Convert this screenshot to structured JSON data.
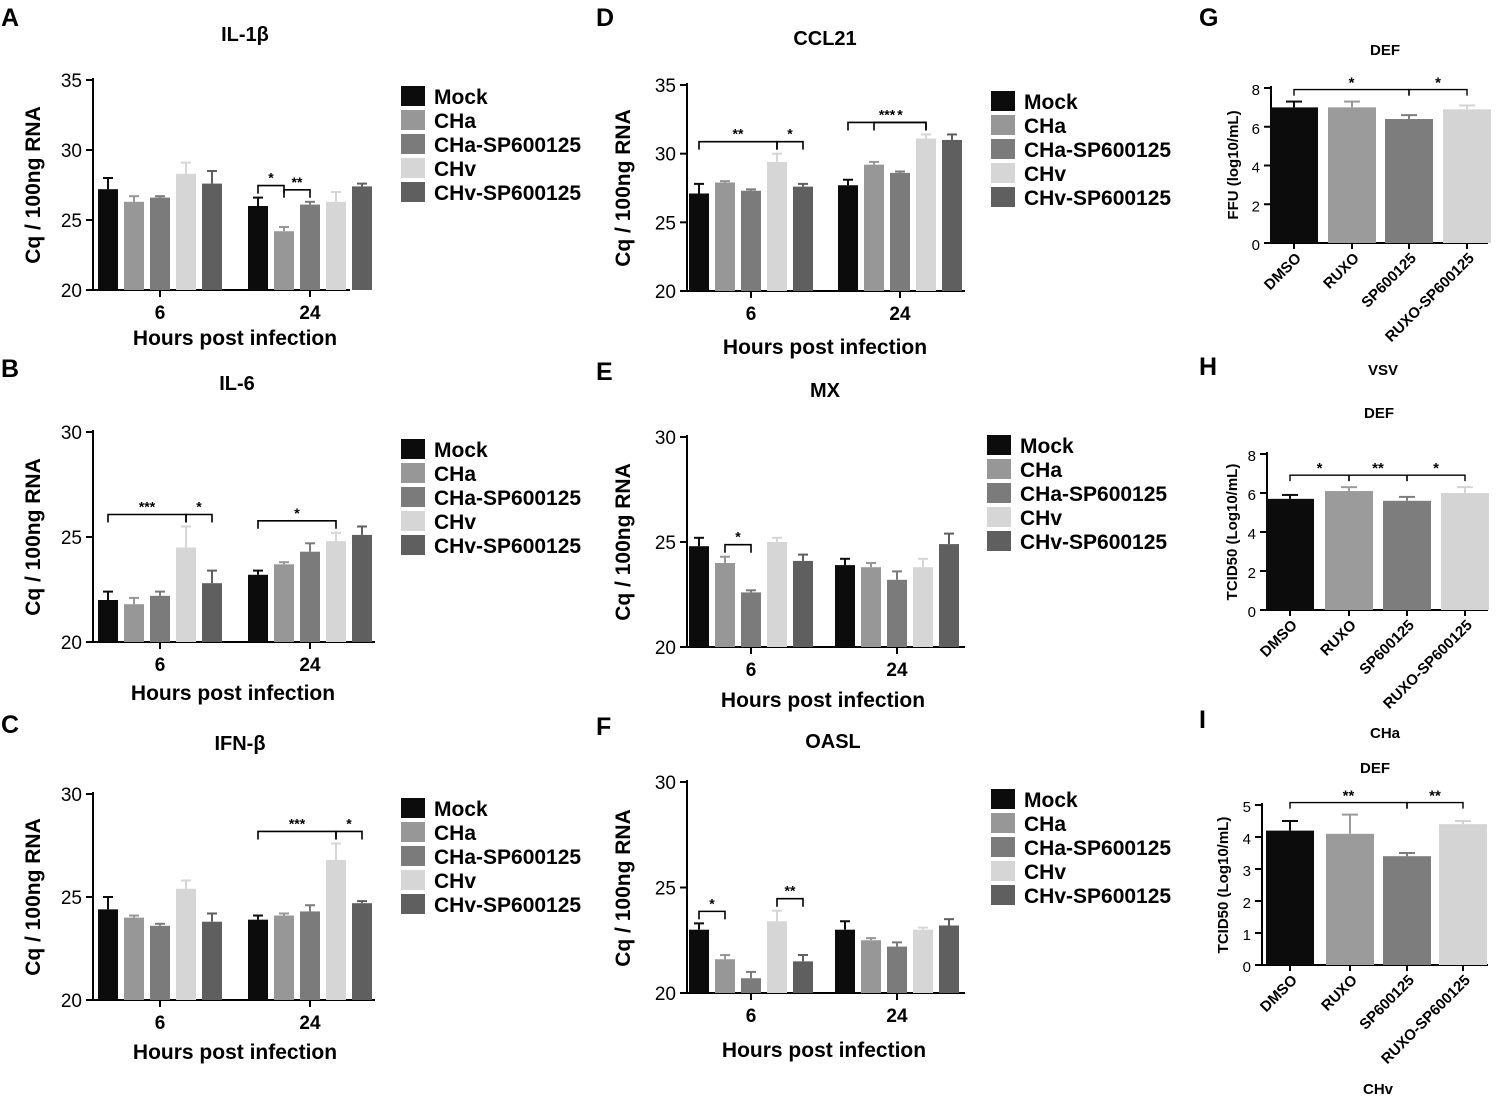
{
  "colors": {
    "mock": "#0c0c0c",
    "cha": "#979797",
    "cha_sp": "#7b7b7b",
    "chv": "#d6d6d6",
    "chv_sp": "#5f5f5f",
    "dmso": "#0c0c0c",
    "ruxo": "#9b9b9b",
    "sp600125": "#7d7d7d",
    "ruxo_sp": "#d4d4d4"
  },
  "panel_letters": [
    "A",
    "B",
    "C",
    "D",
    "E",
    "F",
    "G",
    "H",
    "I"
  ],
  "chart_data": [
    {
      "id": "A",
      "type": "bar",
      "title": "IL-1β",
      "xlabel": "Hours post infection",
      "ylabel": "Cq / 100ng RNA",
      "ylim": [
        20,
        35
      ],
      "yticks": [
        20,
        25,
        30,
        35
      ],
      "categories": [
        "6",
        "24"
      ],
      "series": [
        {
          "name": "Mock",
          "values": [
            27.2,
            26.0
          ],
          "errors": [
            0.8,
            0.6
          ]
        },
        {
          "name": "CHa",
          "values": [
            26.3,
            24.2
          ],
          "errors": [
            0.4,
            0.3
          ]
        },
        {
          "name": "CHa-SP600125",
          "values": [
            26.6,
            26.1
          ],
          "errors": [
            0.1,
            0.2
          ]
        },
        {
          "name": "CHv",
          "values": [
            28.3,
            26.3
          ],
          "errors": [
            0.8,
            0.7
          ]
        },
        {
          "name": "CHv-SP600125",
          "values": [
            27.6,
            27.4
          ],
          "errors": [
            0.9,
            0.2
          ]
        }
      ],
      "annotations": [
        {
          "cat": 1,
          "from": 0,
          "to": 1,
          "label": "*"
        },
        {
          "cat": 1,
          "from": 1,
          "to": 2,
          "label": "**"
        }
      ]
    },
    {
      "id": "B",
      "type": "bar",
      "title": "IL-6",
      "xlabel": "Hours post infection",
      "ylabel": "Cq / 100ng RNA",
      "ylim": [
        20,
        30
      ],
      "yticks": [
        20,
        25,
        30
      ],
      "categories": [
        "6",
        "24"
      ],
      "series": [
        {
          "name": "Mock",
          "values": [
            22.0,
            23.2
          ],
          "errors": [
            0.4,
            0.2
          ]
        },
        {
          "name": "CHa",
          "values": [
            21.8,
            23.7
          ],
          "errors": [
            0.3,
            0.1
          ]
        },
        {
          "name": "CHa-SP600125",
          "values": [
            22.2,
            24.3
          ],
          "errors": [
            0.2,
            0.4
          ]
        },
        {
          "name": "CHv",
          "values": [
            24.5,
            24.8
          ],
          "errors": [
            1.0,
            0.4
          ]
        },
        {
          "name": "CHv-SP600125",
          "values": [
            22.8,
            25.1
          ],
          "errors": [
            0.6,
            0.4
          ]
        }
      ],
      "annotations": [
        {
          "cat": 0,
          "from": 0,
          "to": 3,
          "label": "***"
        },
        {
          "cat": 0,
          "from": 3,
          "to": 4,
          "label": "*"
        },
        {
          "cat": 1,
          "from": 0,
          "to": 3,
          "label": "*"
        }
      ]
    },
    {
      "id": "C",
      "type": "bar",
      "title": "IFN-β",
      "xlabel": "Hours post infection",
      "ylabel": "Cq / 100ng RNA",
      "ylim": [
        20,
        30
      ],
      "yticks": [
        20,
        25,
        30
      ],
      "categories": [
        "6",
        "24"
      ],
      "series": [
        {
          "name": "Mock",
          "values": [
            24.4,
            23.9
          ],
          "errors": [
            0.6,
            0.2
          ]
        },
        {
          "name": "CHa",
          "values": [
            24.0,
            24.1
          ],
          "errors": [
            0.1,
            0.1
          ]
        },
        {
          "name": "CHa-SP600125",
          "values": [
            23.6,
            24.3
          ],
          "errors": [
            0.1,
            0.3
          ]
        },
        {
          "name": "CHv",
          "values": [
            25.4,
            26.8
          ],
          "errors": [
            0.4,
            0.8
          ]
        },
        {
          "name": "CHv-SP600125",
          "values": [
            23.8,
            24.7
          ],
          "errors": [
            0.4,
            0.1
          ]
        }
      ],
      "annotations": [
        {
          "cat": 1,
          "from": 0,
          "to": 3,
          "label": "***"
        },
        {
          "cat": 1,
          "from": 3,
          "to": 4,
          "label": "*"
        }
      ]
    },
    {
      "id": "D",
      "type": "bar",
      "title": "CCL21",
      "xlabel": "Hours post infection",
      "ylabel": "Cq / 100ng RNA",
      "ylim": [
        20,
        35
      ],
      "yticks": [
        20,
        25,
        30,
        35
      ],
      "categories": [
        "6",
        "24"
      ],
      "series": [
        {
          "name": "Mock",
          "values": [
            27.1,
            27.7
          ],
          "errors": [
            0.7,
            0.4
          ]
        },
        {
          "name": "CHa",
          "values": [
            27.9,
            29.2
          ],
          "errors": [
            0.1,
            0.2
          ]
        },
        {
          "name": "CHa-SP600125",
          "values": [
            27.3,
            28.6
          ],
          "errors": [
            0.1,
            0.1
          ]
        },
        {
          "name": "CHv",
          "values": [
            29.4,
            31.1
          ],
          "errors": [
            0.6,
            0.3
          ]
        },
        {
          "name": "CHv-SP600125",
          "values": [
            27.6,
            31.0
          ],
          "errors": [
            0.2,
            0.4
          ]
        }
      ],
      "annotations": [
        {
          "cat": 0,
          "from": 0,
          "to": 3,
          "label": "**"
        },
        {
          "cat": 0,
          "from": 3,
          "to": 4,
          "label": "*"
        },
        {
          "cat": 1,
          "from": 0,
          "to": 3,
          "label": "***"
        },
        {
          "cat": 1,
          "from": 1,
          "to": 3,
          "label": "*"
        }
      ]
    },
    {
      "id": "E",
      "type": "bar",
      "title": "MX",
      "xlabel": "Hours post infection",
      "ylabel": "Cq / 100ng RNA",
      "ylim": [
        20,
        30
      ],
      "yticks": [
        20,
        25,
        30
      ],
      "categories": [
        "6",
        "24"
      ],
      "series": [
        {
          "name": "Mock",
          "values": [
            24.8,
            23.9
          ],
          "errors": [
            0.4,
            0.3
          ]
        },
        {
          "name": "CHa",
          "values": [
            24.0,
            23.8
          ],
          "errors": [
            0.3,
            0.2
          ]
        },
        {
          "name": "CHa-SP600125",
          "values": [
            22.6,
            23.2
          ],
          "errors": [
            0.1,
            0.4
          ]
        },
        {
          "name": "CHv",
          "values": [
            25.0,
            23.8
          ],
          "errors": [
            0.2,
            0.4
          ]
        },
        {
          "name": "CHv-SP600125",
          "values": [
            24.1,
            24.9
          ],
          "errors": [
            0.3,
            0.5
          ]
        }
      ],
      "annotations": [
        {
          "cat": 0,
          "from": 1,
          "to": 2,
          "label": "*"
        }
      ]
    },
    {
      "id": "F",
      "type": "bar",
      "title": "OASL",
      "xlabel": "Hours post infection",
      "ylabel": "Cq / 100ng RNA",
      "ylim": [
        20,
        30
      ],
      "yticks": [
        20,
        25,
        30
      ],
      "categories": [
        "6",
        "24"
      ],
      "series": [
        {
          "name": "Mock",
          "values": [
            23.0,
            23.0
          ],
          "errors": [
            0.3,
            0.4
          ]
        },
        {
          "name": "CHa",
          "values": [
            21.6,
            22.5
          ],
          "errors": [
            0.2,
            0.1
          ]
        },
        {
          "name": "CHa-SP600125",
          "values": [
            20.7,
            22.2
          ],
          "errors": [
            0.3,
            0.2
          ]
        },
        {
          "name": "CHv",
          "values": [
            23.4,
            23.0
          ],
          "errors": [
            0.5,
            0.1
          ]
        },
        {
          "name": "CHv-SP600125",
          "values": [
            21.5,
            23.2
          ],
          "errors": [
            0.3,
            0.3
          ]
        }
      ],
      "annotations": [
        {
          "cat": 0,
          "from": 0,
          "to": 1,
          "label": "*"
        },
        {
          "cat": 0,
          "from": 3,
          "to": 4,
          "label": "**"
        }
      ]
    },
    {
      "id": "G",
      "type": "bar",
      "title": "DEF",
      "subtitle": "VSV",
      "xlabel": "",
      "ylabel": "FFU (log10/mL)",
      "ylim": [
        0,
        8
      ],
      "yticks": [
        0,
        2,
        4,
        6,
        8
      ],
      "categories": [
        "DMSO",
        "RUXO",
        "SP600125",
        "RUXO-SP600125"
      ],
      "values": [
        7.0,
        7.0,
        6.4,
        6.9
      ],
      "errors": [
        0.3,
        0.3,
        0.2,
        0.2
      ],
      "annotations": [
        {
          "from": 0,
          "to": 2,
          "label": "*"
        },
        {
          "from": 2,
          "to": 3,
          "label": "*"
        }
      ]
    },
    {
      "id": "H",
      "type": "bar",
      "title": "DEF",
      "subtitle": "CHa",
      "xlabel": "",
      "ylabel": "TCID50 (Log10/mL)",
      "ylim": [
        0,
        8
      ],
      "yticks": [
        0,
        2,
        4,
        6,
        8
      ],
      "categories": [
        "DMSO",
        "RUXO",
        "SP600125",
        "RUXO-SP600125"
      ],
      "values": [
        5.7,
        6.1,
        5.6,
        6.0
      ],
      "errors": [
        0.2,
        0.2,
        0.2,
        0.3
      ],
      "annotations": [
        {
          "from": 0,
          "to": 1,
          "label": "*"
        },
        {
          "from": 1,
          "to": 2,
          "label": "**"
        },
        {
          "from": 2,
          "to": 3,
          "label": "*"
        }
      ]
    },
    {
      "id": "I",
      "type": "bar",
      "title": "DEF",
      "subtitle": "CHv",
      "xlabel": "",
      "ylabel": "TCID50 (Log10/mL)",
      "ylim": [
        0,
        5
      ],
      "yticks": [
        0,
        1,
        2,
        3,
        4,
        5
      ],
      "categories": [
        "DMSO",
        "RUXO",
        "SP600125",
        "RUXO-SP600125"
      ],
      "values": [
        4.2,
        4.1,
        3.4,
        4.4
      ],
      "errors": [
        0.3,
        0.6,
        0.1,
        0.1
      ],
      "annotations": [
        {
          "from": 0,
          "to": 2,
          "label": "**"
        },
        {
          "from": 2,
          "to": 3,
          "label": "**"
        }
      ]
    }
  ]
}
